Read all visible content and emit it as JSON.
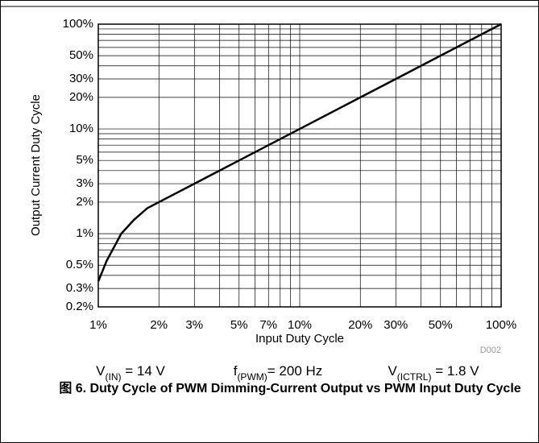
{
  "chart_data": {
    "type": "line",
    "x_label": "Input Duty Cycle",
    "y_label": "Output Current Duty Cycle",
    "note": "D002",
    "xlog": true,
    "ylog": true,
    "grid": true,
    "xlim": [
      1,
      100
    ],
    "ylim": [
      0.2,
      100
    ],
    "xticks": [
      {
        "value": 1,
        "label": "1%"
      },
      {
        "value": 2,
        "label": "2%"
      },
      {
        "value": 3,
        "label": "3%"
      },
      {
        "value": 5,
        "label": "5%"
      },
      {
        "value": 7,
        "label": "7%"
      },
      {
        "value": 10,
        "label": "10%"
      },
      {
        "value": 20,
        "label": "20%"
      },
      {
        "value": 30,
        "label": "30%"
      },
      {
        "value": 50,
        "label": "50%"
      },
      {
        "value": 100,
        "label": "100%"
      }
    ],
    "yticks": [
      {
        "value": 0.2,
        "label": "0.2%"
      },
      {
        "value": 0.3,
        "label": "0.3%"
      },
      {
        "value": 0.5,
        "label": "0.5%"
      },
      {
        "value": 1,
        "label": "1%"
      },
      {
        "value": 2,
        "label": "2%"
      },
      {
        "value": 3,
        "label": "3%"
      },
      {
        "value": 5,
        "label": "5%"
      },
      {
        "value": 10,
        "label": "10%"
      },
      {
        "value": 20,
        "label": "20%"
      },
      {
        "value": 30,
        "label": "30%"
      },
      {
        "value": 50,
        "label": "50%"
      },
      {
        "value": 100,
        "label": "100%"
      }
    ],
    "x_minor_ticks": [
      4,
      6,
      8,
      9,
      40,
      60,
      70,
      80,
      90
    ],
    "y_minor_ticks": [
      0.4,
      0.6,
      0.7,
      0.8,
      0.9,
      4,
      6,
      7,
      8,
      9,
      40,
      60,
      70,
      80,
      90
    ],
    "series": [
      {
        "color": "#000000",
        "x": [
          1,
          1.1,
          1.3,
          1.5,
          1.75,
          2,
          5,
          10,
          20,
          50,
          100
        ],
        "values": [
          0.35,
          0.55,
          1.0,
          1.35,
          1.75,
          2,
          5,
          10,
          20,
          50,
          100
        ]
      }
    ],
    "annotations": [
      {
        "base": "V",
        "sub": "(IN)",
        "rest": " = 14 V"
      },
      {
        "base": "f",
        "sub": "(PWM)",
        "rest": "= 200 Hz"
      },
      {
        "base": "V",
        "sub": "(ICTRL)",
        "rest": " = 1.8 V"
      }
    ],
    "caption": "图 6. Duty Cycle of PWM Dimming-Current Output vs PWM Input Duty Cycle"
  }
}
